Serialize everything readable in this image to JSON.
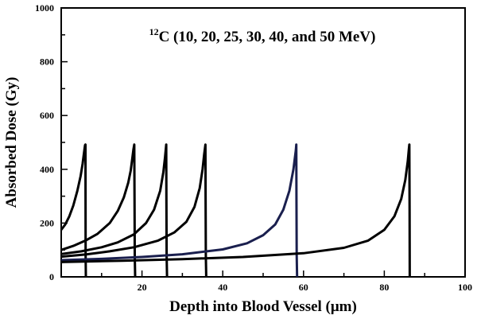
{
  "chart_data": {
    "type": "line",
    "title_superscript": "12",
    "title_main": "C (10, 20, 25, 30, 40, and 50 MeV)",
    "xlabel": "Depth into Blood Vessel (μm)",
    "ylabel": "Absorbed Dose (Gy)",
    "xlim": [
      0,
      100
    ],
    "ylim": [
      0,
      1000
    ],
    "x_ticks": [
      20,
      40,
      60,
      80,
      100
    ],
    "y_ticks": [
      0,
      200,
      400,
      600,
      800,
      1000
    ],
    "grid": false,
    "series": [
      {
        "energy_mev": 10,
        "color": "#000000",
        "x": [
          0,
          1,
          2,
          3,
          4,
          4.8,
          5.3,
          5.6,
          5.8,
          5.9,
          6.0,
          6.02,
          6.05,
          6.1
        ],
        "y": [
          175,
          195,
          225,
          265,
          320,
          375,
          420,
          455,
          480,
          490,
          492,
          300,
          80,
          0
        ]
      },
      {
        "energy_mev": 20,
        "color": "#000000",
        "x": [
          0,
          3,
          6,
          9,
          12,
          14,
          15.5,
          16.6,
          17.2,
          17.6,
          17.9,
          18.1,
          18.15,
          18.2,
          18.3
        ],
        "y": [
          100,
          115,
          135,
          160,
          200,
          245,
          295,
          350,
          395,
          440,
          475,
          492,
          300,
          80,
          0
        ]
      },
      {
        "energy_mev": 25,
        "color": "#000000",
        "x": [
          0,
          5,
          10,
          14,
          18,
          21,
          23,
          24.5,
          25.3,
          25.7,
          26.0,
          26.05,
          26.1,
          26.2
        ],
        "y": [
          85,
          95,
          110,
          128,
          158,
          200,
          250,
          320,
          390,
          445,
          492,
          300,
          80,
          0
        ]
      },
      {
        "energy_mev": 30,
        "color": "#000000",
        "x": [
          0,
          6,
          12,
          18,
          24,
          28,
          31,
          33,
          34.3,
          35.0,
          35.4,
          35.7,
          35.75,
          35.8,
          35.9
        ],
        "y": [
          75,
          83,
          95,
          110,
          135,
          165,
          205,
          260,
          330,
          400,
          455,
          492,
          300,
          80,
          0
        ]
      },
      {
        "energy_mev": 40,
        "color": "#1a1f4e",
        "x": [
          0,
          10,
          20,
          30,
          40,
          46,
          50,
          53,
          55,
          56.5,
          57.5,
          58.1,
          58.2,
          58.25,
          58.3,
          58.4
        ],
        "y": [
          62,
          67,
          74,
          84,
          102,
          125,
          155,
          195,
          250,
          320,
          400,
          470,
          492,
          300,
          80,
          0
        ]
      },
      {
        "energy_mev": 50,
        "color": "#000000",
        "x": [
          0,
          15,
          30,
          45,
          60,
          70,
          76,
          80,
          82.5,
          84.2,
          85.2,
          85.8,
          86.1,
          86.2,
          86.25,
          86.3
        ],
        "y": [
          55,
          60,
          66,
          74,
          88,
          108,
          135,
          175,
          225,
          290,
          360,
          430,
          478,
          492,
          250,
          0
        ]
      }
    ]
  }
}
